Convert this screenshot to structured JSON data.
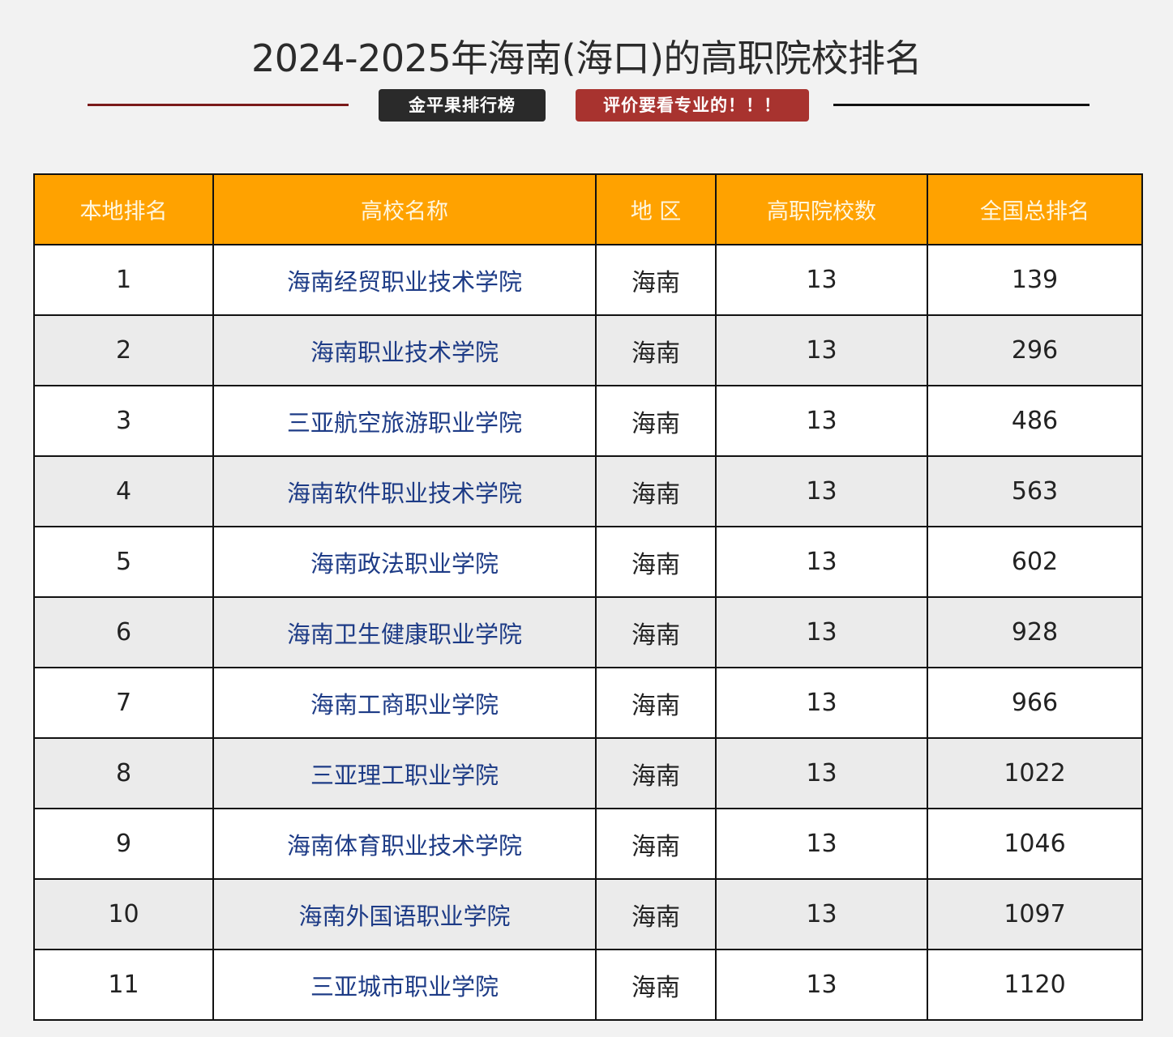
{
  "header": {
    "title": "2024-2025年海南(海口)的高职院校排名",
    "badge_left": "金平果排行榜",
    "badge_right": "评价要看专业的！！！"
  },
  "colors": {
    "header_bg": "#ffa200",
    "badge_dark": "#2a2a2a",
    "badge_red": "#a8332f",
    "link_text": "#1d3b86"
  },
  "table": {
    "columns": [
      "本地排名",
      "高校名称",
      "地 区",
      "高职院校数",
      "全国总排名"
    ],
    "rows": [
      {
        "rank": "1",
        "name": "海南经贸职业技术学院",
        "region": "海南",
        "count": "13",
        "national": "139"
      },
      {
        "rank": "2",
        "name": "海南职业技术学院",
        "region": "海南",
        "count": "13",
        "national": "296"
      },
      {
        "rank": "3",
        "name": "三亚航空旅游职业学院",
        "region": "海南",
        "count": "13",
        "national": "486"
      },
      {
        "rank": "4",
        "name": "海南软件职业技术学院",
        "region": "海南",
        "count": "13",
        "national": "563"
      },
      {
        "rank": "5",
        "name": "海南政法职业学院",
        "region": "海南",
        "count": "13",
        "national": "602"
      },
      {
        "rank": "6",
        "name": "海南卫生健康职业学院",
        "region": "海南",
        "count": "13",
        "national": "928"
      },
      {
        "rank": "7",
        "name": "海南工商职业学院",
        "region": "海南",
        "count": "13",
        "national": "966"
      },
      {
        "rank": "8",
        "name": "三亚理工职业学院",
        "region": "海南",
        "count": "13",
        "national": "1022"
      },
      {
        "rank": "9",
        "name": "海南体育职业技术学院",
        "region": "海南",
        "count": "13",
        "national": "1046"
      },
      {
        "rank": "10",
        "name": "海南外国语职业学院",
        "region": "海南",
        "count": "13",
        "national": "1097"
      },
      {
        "rank": "11",
        "name": "三亚城市职业学院",
        "region": "海南",
        "count": "13",
        "national": "1120"
      }
    ]
  }
}
